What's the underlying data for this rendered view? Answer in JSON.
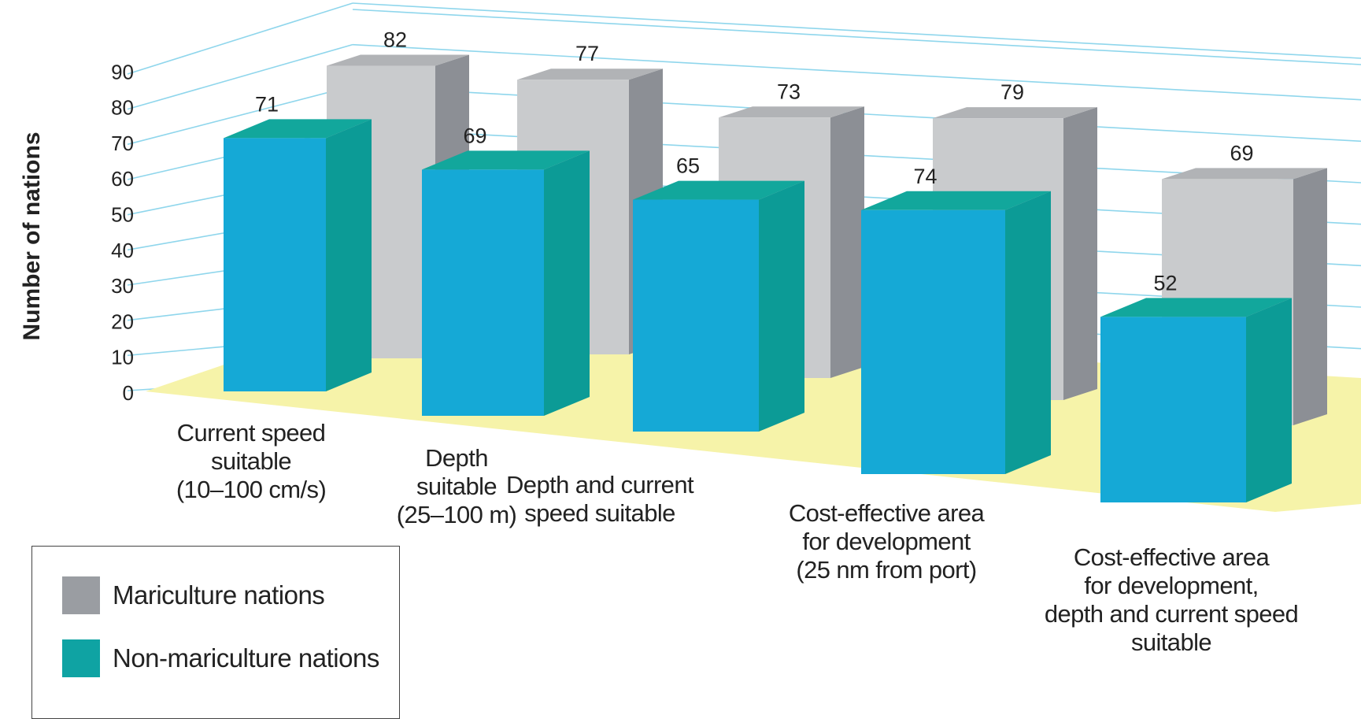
{
  "chart_data": {
    "type": "bar",
    "ylabel": "Number of nations",
    "ylim": [
      0,
      90
    ],
    "yticks": [
      "0",
      "10",
      "20",
      "30",
      "40",
      "50",
      "60",
      "70",
      "80",
      "90"
    ],
    "categories": [
      [
        "Current speed",
        "suitable",
        "(10–100 cm/s)"
      ],
      [
        "Depth",
        "suitable",
        "(25–100 m)"
      ],
      [
        "Depth and current",
        "speed suitable"
      ],
      [
        "Cost-effective area",
        "for development",
        "(25 nm from port)"
      ],
      [
        "Cost-effective area",
        "for development,",
        "depth and current speed",
        "suitable"
      ]
    ],
    "series": [
      {
        "name": "Mariculture nations",
        "values": [
          82,
          77,
          73,
          79,
          69
        ],
        "color": "#c9cbcd"
      },
      {
        "name": "Non-mariculture nations",
        "values": [
          71,
          69,
          65,
          74,
          52
        ],
        "color": "#15a9d6"
      }
    ],
    "colors": {
      "floor": "#f6f3a9",
      "gridline": "#8fd6ec",
      "nonmari_top": "#12a79c",
      "mari_side": "#8c8f95"
    },
    "legend": {
      "position": "bottom-left",
      "items": [
        {
          "label": "Mariculture nations",
          "color": "#9a9da2"
        },
        {
          "label": "Non-mariculture nations",
          "color": "#0fa3a3"
        }
      ]
    }
  }
}
